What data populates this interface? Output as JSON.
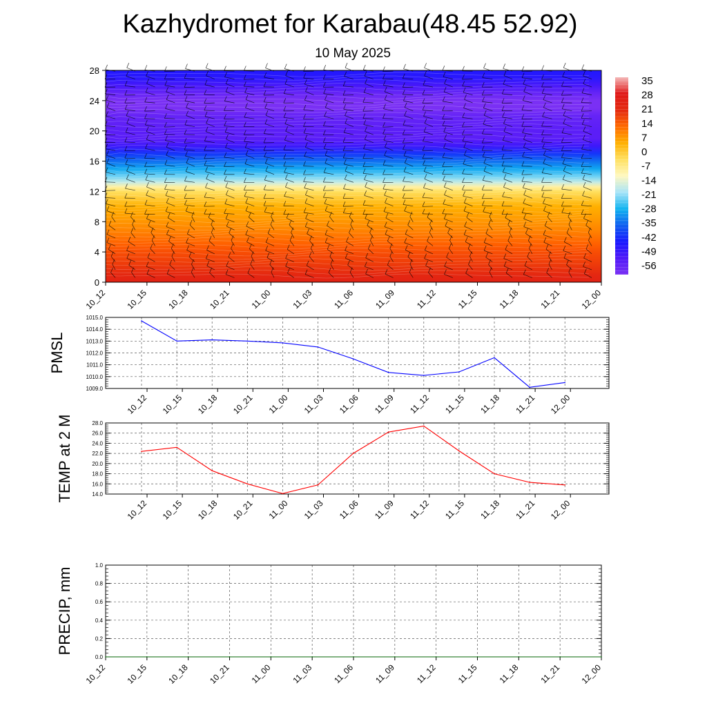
{
  "header": {
    "title": "Kazhydromet for Karabau(48.45 52.92)",
    "subtitle": "10 May 2025"
  },
  "time_labels": [
    "10_12",
    "10_15",
    "10_18",
    "10_21",
    "11_00",
    "11_03",
    "11_06",
    "11_09",
    "11_12",
    "11_15",
    "11_18",
    "11_21",
    "12_00"
  ],
  "chart_data": [
    {
      "type": "heatmap",
      "name": "temperature-cross-section",
      "x": [
        "10_12",
        "10_15",
        "10_18",
        "10_21",
        "11_00",
        "11_03",
        "11_06",
        "11_09",
        "11_12",
        "11_15",
        "11_18",
        "11_21",
        "12_00"
      ],
      "y_ticks": [
        "0",
        "4",
        "8",
        "12",
        "16",
        "20",
        "24",
        "28"
      ],
      "ylim": [
        0,
        28
      ],
      "profile": [
        {
          "h": 0,
          "t": 30
        },
        {
          "h": 1,
          "t": 27
        },
        {
          "h": 2,
          "t": 24
        },
        {
          "h": 3,
          "t": 22
        },
        {
          "h": 4,
          "t": 20
        },
        {
          "h": 5,
          "t": 17
        },
        {
          "h": 6,
          "t": 14
        },
        {
          "h": 7,
          "t": 11
        },
        {
          "h": 8,
          "t": 8
        },
        {
          "h": 9,
          "t": 5
        },
        {
          "h": 10,
          "t": 2
        },
        {
          "h": 11,
          "t": -2
        },
        {
          "h": 12,
          "t": -6
        },
        {
          "h": 12.6,
          "t": -10
        },
        {
          "h": 13.2,
          "t": -16
        },
        {
          "h": 14,
          "t": -22
        },
        {
          "h": 15,
          "t": -30
        },
        {
          "h": 16,
          "t": -38
        },
        {
          "h": 17,
          "t": -46
        },
        {
          "h": 18,
          "t": -54
        },
        {
          "h": 19,
          "t": -57
        },
        {
          "h": 20,
          "t": -57
        },
        {
          "h": 22,
          "t": -58
        },
        {
          "h": 23,
          "t": -60
        },
        {
          "h": 24,
          "t": -60
        },
        {
          "h": 25,
          "t": -58
        },
        {
          "h": 26,
          "t": -55
        },
        {
          "h": 27,
          "t": -52
        },
        {
          "h": 28,
          "t": -51
        }
      ],
      "colorbar": {
        "labels": [
          "35",
          "28",
          "21",
          "14",
          "7",
          "0",
          "-7",
          "-14",
          "-21",
          "-28",
          "-35",
          "-42",
          "-49",
          "-56"
        ],
        "stops": [
          "#f4b8b8",
          "#e01818",
          "#e42a10",
          "#ff6a00",
          "#ffb000",
          "#ffe060",
          "#fff8c0",
          "#a8e4f8",
          "#10b4f0",
          "#1060f0",
          "#1818ff",
          "#5018f8",
          "#7a30f4"
        ]
      },
      "grid": false,
      "legend": "right"
    },
    {
      "type": "line",
      "name": "pmsl",
      "ylabel": "PMSL",
      "x": [
        "10_12",
        "10_15",
        "10_18",
        "10_21",
        "11_00",
        "11_03",
        "11_06",
        "11_09",
        "11_12",
        "11_15",
        "11_18",
        "11_21",
        "12_00"
      ],
      "values": [
        1014.7,
        1013.0,
        1013.1,
        1013.0,
        1012.85,
        1012.5,
        1011.5,
        1010.35,
        1010.1,
        1010.4,
        1011.6,
        1009.1,
        1009.5
      ],
      "ylim": [
        1009.0,
        1015.0
      ],
      "y_ticks": [
        "1009.0",
        "1010.0",
        "1011.0",
        "1012.0",
        "1013.0",
        "1014.0",
        "1015.0"
      ],
      "color": "#0000ff",
      "grid": true
    },
    {
      "type": "line",
      "name": "temp-2m",
      "ylabel": "TEMP at 2 M",
      "x": [
        "10_12",
        "10_15",
        "10_18",
        "10_21",
        "11_00",
        "11_03",
        "11_06",
        "11_09",
        "11_12",
        "11_15",
        "11_18",
        "11_21",
        "12_00"
      ],
      "values": [
        22.4,
        23.2,
        18.6,
        16.0,
        14.1,
        15.8,
        22.0,
        26.2,
        27.4,
        22.5,
        18.0,
        16.3,
        15.8
      ],
      "ylim": [
        14.0,
        28.0
      ],
      "y_ticks": [
        "14.0",
        "16.0",
        "18.0",
        "20.0",
        "22.0",
        "24.0",
        "26.0",
        "28.0"
      ],
      "color": "#ff0000",
      "grid": true
    },
    {
      "type": "line",
      "name": "precip",
      "ylabel": "PRECIP, mm",
      "x": [
        "10_12",
        "10_15",
        "10_18",
        "10_21",
        "11_00",
        "11_03",
        "11_06",
        "11_09",
        "11_12",
        "11_15",
        "11_18",
        "11_21",
        "12_00"
      ],
      "values": [
        0,
        0,
        0,
        0,
        0,
        0,
        0,
        0,
        0,
        0,
        0,
        0,
        0
      ],
      "ylim": [
        0.0,
        1.0
      ],
      "y_ticks": [
        "0.0",
        "0.2",
        "0.4",
        "0.6",
        "0.8",
        "1.0"
      ],
      "color": "#006400",
      "grid": true
    }
  ]
}
